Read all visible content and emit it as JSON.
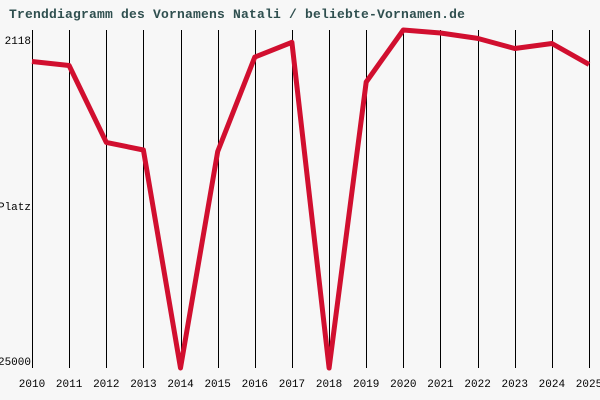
{
  "page": {
    "background_color": "#f7f7f7"
  },
  "chart_data": {
    "type": "line",
    "title": "Trenddiagramm des Vornamens Natali / beliebte-Vornamen.de",
    "title_color": "#2f4f4f",
    "name_shown": "Natali",
    "source_shown_in_title": "beliebte-Vornamen.de",
    "x": [
      2010,
      2011,
      2012,
      2013,
      2014,
      2015,
      2016,
      2017,
      2018,
      2019,
      2020,
      2021,
      2022,
      2023,
      2024,
      2025
    ],
    "series": [
      {
        "name": "Natali",
        "color": "#d10f2f",
        "values": [
          4250,
          4520,
          9730,
          10240,
          25000,
          10340,
          3950,
          2950,
          25000,
          5640,
          2118,
          2320,
          2690,
          3370,
          3030,
          4450
        ]
      }
    ],
    "values_note": "rank values estimated from line position; only axis extremes 2118 and 25000 are labeled in the image; lower rank = higher on chart",
    "ylabel": "Platz",
    "y_axis": {
      "top_label": "2118",
      "top_value": 2118,
      "bottom_label": "25000",
      "bottom_value": 25000,
      "inverted": true
    },
    "xlabel": "",
    "grid": "vertical-only",
    "gridline_color": "#000000",
    "legend_position": "none"
  }
}
